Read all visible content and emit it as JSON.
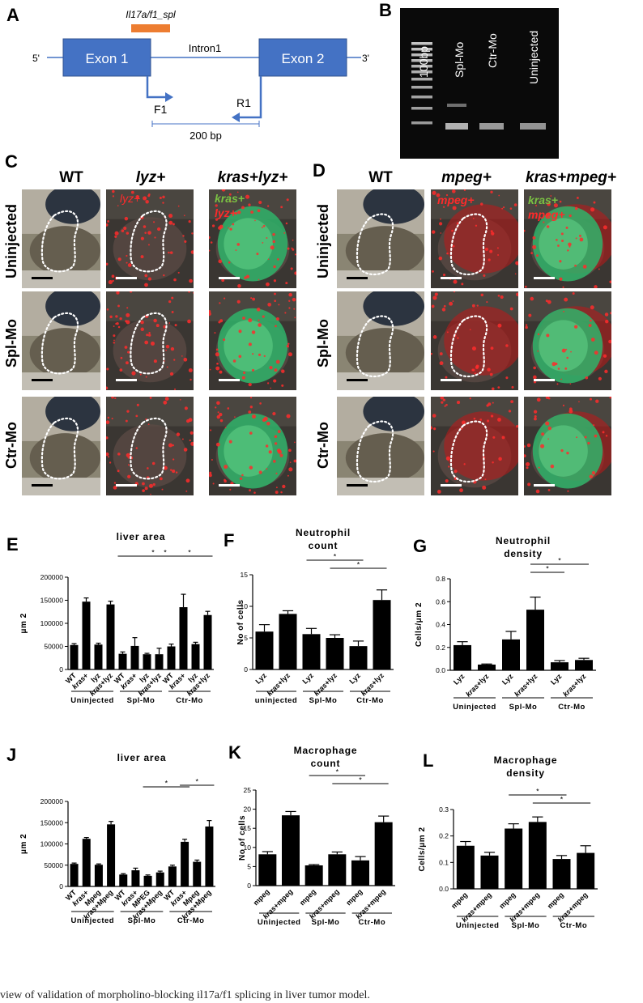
{
  "panel_letters": [
    "A",
    "B",
    "C",
    "D",
    "E",
    "F",
    "G",
    "J",
    "K",
    "L"
  ],
  "gene_diagram": {
    "probe_label": "Il17a/f1_spl",
    "exon1": "Exon 1",
    "exon2": "Exon 2",
    "intron": "Intron1",
    "five_prime": "5'",
    "three_prime": "3'",
    "forward_primer": "F1",
    "reverse_primer": "R1",
    "product_size": "200 bp",
    "colors": {
      "exon": "#4472c4",
      "probe": "#ed7d31",
      "line": "#4472c4"
    }
  },
  "gel": {
    "lanes": [
      "100bp",
      "Spl-Mo",
      "Ctr-Mo",
      "Uninjected"
    ]
  },
  "imaging_c": {
    "columns": [
      "WT",
      "lyz+",
      "kras+lyz+"
    ],
    "rows": [
      "Uninjected",
      "Spl-Mo",
      "Ctr-Mo"
    ],
    "overlay_lyz": "lyz+",
    "overlay_kras": "kras+",
    "overlay_lyz2": "lyz+"
  },
  "imaging_d": {
    "columns": [
      "WT",
      "mpeg+",
      "kras+mpeg+"
    ],
    "rows": [
      "Uninjected",
      "Spl-Mo",
      "Ctr-Mo"
    ],
    "overlay_mpeg": "mpeg+",
    "overlay_kras": "kras+",
    "overlay_mpeg2": "mpeg+"
  },
  "chart_data": [
    {
      "id": "E",
      "type": "bar",
      "title": "liver area",
      "ylabel": "μm 2",
      "ylim": [
        0,
        200000
      ],
      "yticks": [
        "0",
        "50000",
        "100000",
        "150000",
        "200000"
      ],
      "categories": [
        "WT",
        "kras+",
        "lyz",
        "kras+lyz",
        "WT",
        "kras+",
        "lyz",
        "kras+lyz",
        "WT",
        "kras+",
        "lyz",
        "kras+lyz"
      ],
      "values": [
        53000,
        147000,
        54000,
        141000,
        34000,
        51000,
        33000,
        33000,
        50000,
        135000,
        55000,
        118000
      ],
      "errors": [
        3000,
        8000,
        3000,
        7000,
        4000,
        18000,
        2000,
        13000,
        5000,
        28000,
        4000,
        8000
      ],
      "groups": [
        "Uninjected",
        "Spl-Mo",
        "Ctr-Mo"
      ]
    },
    {
      "id": "F",
      "type": "bar",
      "title": "Neutrophil count",
      "ylabel": "No of cells",
      "ylim": [
        0,
        15
      ],
      "yticks": [
        "0",
        "5",
        "10",
        "15"
      ],
      "categories": [
        "Lyz",
        "kras+lyz",
        "Lyz",
        "kras+lyz",
        "Lyz",
        "kras+lyz"
      ],
      "values": [
        6.0,
        8.8,
        5.6,
        5.0,
        3.7,
        11.0
      ],
      "errors": [
        1.1,
        0.5,
        0.9,
        0.5,
        0.8,
        1.6
      ],
      "groups": [
        "uninjected",
        "Spl-Mo",
        "Ctr-Mo"
      ]
    },
    {
      "id": "G",
      "type": "bar",
      "title": "Neutrophil density",
      "ylabel": "Cells/μm 2",
      "ylim": [
        0,
        0.8
      ],
      "yticks": [
        "0.0",
        "0.2",
        "0.4",
        "0.6",
        "0.8"
      ],
      "categories": [
        "Lyz",
        "kras+lyz",
        "Lyz",
        "kras+lyz",
        "Lyz",
        "kras+lyz"
      ],
      "values": [
        0.22,
        0.05,
        0.27,
        0.53,
        0.07,
        0.09
      ],
      "errors": [
        0.03,
        0.005,
        0.07,
        0.11,
        0.015,
        0.015
      ],
      "groups": [
        "Uninjected",
        "Spl-Mo",
        "Ctr-Mo"
      ]
    },
    {
      "id": "J",
      "type": "bar",
      "title": "liver area",
      "ylabel": "μm 2",
      "ylim": [
        0,
        200000
      ],
      "yticks": [
        "0",
        "50000",
        "100000",
        "150000",
        "200000"
      ],
      "categories": [
        "WT",
        "kras+",
        "Mpeg",
        "kras+Mpeg",
        "WT",
        "kras+",
        "MPEG",
        "kras+Mpeg",
        "WT",
        "kras+",
        "Mpeg",
        "kras+Mpeg"
      ],
      "values": [
        53000,
        112000,
        51000,
        146000,
        28000,
        38000,
        25000,
        33000,
        47000,
        105000,
        58000,
        141000
      ],
      "errors": [
        2000,
        3000,
        2000,
        7000,
        2000,
        5000,
        2000,
        3000,
        3000,
        6000,
        4000,
        14000
      ],
      "groups": [
        "Uninjected",
        "Spl-Mo",
        "Ctr-Mo"
      ]
    },
    {
      "id": "K",
      "type": "bar",
      "title": "Macrophage count",
      "ylabel": "No of cells",
      "ylim": [
        0,
        25
      ],
      "yticks": [
        "0",
        "5",
        "10",
        "15",
        "20",
        "25"
      ],
      "categories": [
        "mpeg",
        "kras+mpeg",
        "mpeg",
        "kras+mpeg",
        "mpeg",
        "kras+mpeg"
      ],
      "values": [
        8.2,
        18.4,
        5.3,
        8.2,
        6.6,
        16.6
      ],
      "errors": [
        0.7,
        1.0,
        0.2,
        0.6,
        1.0,
        1.6
      ],
      "groups": [
        "Uninjected",
        "Spl-Mo",
        "Ctr-Mo"
      ]
    },
    {
      "id": "L",
      "type": "bar",
      "title": "Macrophage density",
      "ylabel": "Cells/μm 2",
      "ylim": [
        0,
        0.3
      ],
      "yticks": [
        "0.0",
        "0.1",
        "0.2",
        "0.3"
      ],
      "categories": [
        "mpeg",
        "kras+mpeg",
        "mpeg",
        "kras+mpeg",
        "mpeg",
        "kras+mpeg"
      ],
      "values": [
        0.163,
        0.126,
        0.228,
        0.253,
        0.113,
        0.136
      ],
      "errors": [
        0.016,
        0.012,
        0.018,
        0.019,
        0.013,
        0.027
      ],
      "groups": [
        "Uninjected",
        "Spl-Mo",
        "Ctr-Mo"
      ]
    }
  ],
  "significance_mark": "*",
  "caption": "view of validation of morpholino-blocking il17a/f1 splicing in liver tumor model."
}
